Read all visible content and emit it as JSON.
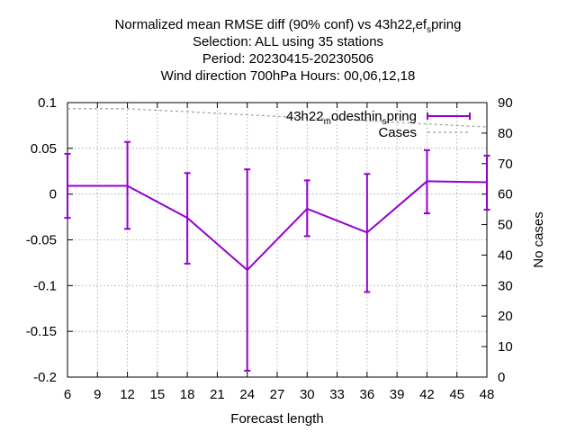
{
  "chart_data": {
    "type": "line",
    "title_lines": [
      {
        "parts": [
          {
            "text": "Normalized mean RMSE diff (90% conf) vs 43h22",
            "sub": false
          },
          {
            "text": "r",
            "sub": true
          },
          {
            "text": "ef",
            "sub": false
          },
          {
            "text": "s",
            "sub": true
          },
          {
            "text": "pring",
            "sub": false
          }
        ]
      },
      {
        "parts": [
          {
            "text": "Selection: ALL using    35 stations",
            "sub": false
          }
        ]
      },
      {
        "parts": [
          {
            "text": "Period: 20230415-20230506",
            "sub": false
          }
        ]
      },
      {
        "parts": [
          {
            "text": "Wind direction 700hPa   Hours:  00,06,12,18",
            "sub": false
          }
        ]
      }
    ],
    "xlabel": "Forecast length",
    "ylabel": "",
    "y2label": "No cases",
    "xlim": [
      6,
      48
    ],
    "ylim": [
      -0.2,
      0.1
    ],
    "y2lim": [
      0,
      90
    ],
    "xticks": [
      6,
      9,
      12,
      15,
      18,
      21,
      24,
      27,
      30,
      33,
      36,
      39,
      42,
      45,
      48
    ],
    "yticks": [
      0.1,
      0.05,
      0,
      -0.05,
      -0.1,
      -0.15,
      -0.2
    ],
    "ytick_labels": [
      "0.1",
      "0.05",
      "0",
      "-0.05",
      "-0.1",
      "-0.15",
      "-0.2"
    ],
    "y2ticks": [
      0,
      10,
      20,
      30,
      40,
      50,
      60,
      70,
      80,
      90
    ],
    "grid": true,
    "legend_position": "top-right",
    "series": [
      {
        "legend_parts": [
          {
            "text": "43h22",
            "sub": false
          },
          {
            "text": "m",
            "sub": true
          },
          {
            "text": "odesthin",
            "sub": false
          },
          {
            "text": "s",
            "sub": true
          },
          {
            "text": "pring",
            "sub": false
          }
        ],
        "color": "#9400d3",
        "x": [
          6,
          12,
          18,
          24,
          30,
          36,
          42,
          48
        ],
        "y": [
          0.009,
          0.009,
          -0.026,
          -0.083,
          -0.016,
          -0.042,
          0.014,
          0.013
        ],
        "err_low": [
          -0.026,
          -0.038,
          -0.076,
          -0.193,
          -0.046,
          -0.107,
          -0.021,
          -0.017
        ],
        "err_high": [
          0.044,
          0.057,
          0.023,
          0.027,
          0.015,
          0.022,
          0.048,
          0.042
        ]
      },
      {
        "legend_parts": [
          {
            "text": "Cases",
            "sub": false
          }
        ],
        "color": "#a0a0a0",
        "axis": "y2",
        "x": [
          6,
          12,
          18,
          24,
          30,
          36,
          42,
          48
        ],
        "y": [
          88,
          88,
          87,
          86,
          85,
          84,
          83,
          82
        ]
      }
    ]
  }
}
